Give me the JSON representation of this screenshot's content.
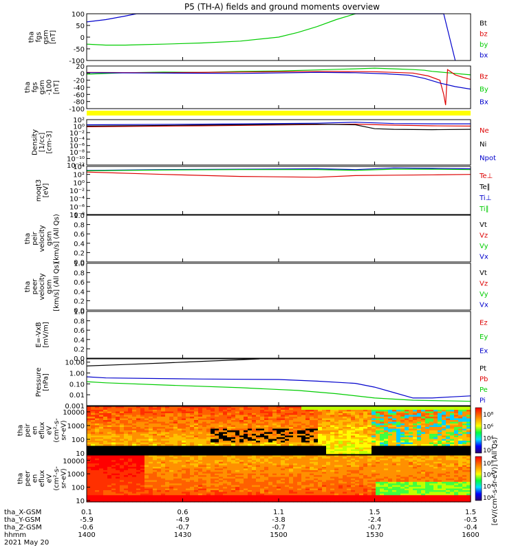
{
  "title": "P5 (TH-A) fields and ground moments overview",
  "colors": {
    "black": "#000000",
    "red": "#dd0000",
    "green": "#00cc00",
    "blue": "#0000cc",
    "yellow": "#ffff00"
  },
  "chart_data": [
    {
      "type": "line",
      "panel": "fgs",
      "ylabel_lines": [
        "tha",
        "fgs",
        "gsm",
        "[nT]"
      ],
      "ylim": [
        -100,
        100
      ],
      "ticks": [
        "100",
        "50",
        "0",
        "-50",
        "-100"
      ],
      "tick_values": [
        100,
        50,
        0,
        -50,
        -100
      ],
      "legend": [
        {
          "label": "Bt",
          "color": "#000000"
        },
        {
          "label": "bz",
          "color": "#dd0000"
        },
        {
          "label": "by",
          "color": "#00cc00"
        },
        {
          "label": "bx",
          "color": "#0000cc"
        }
      ],
      "series": [
        {
          "name": "by",
          "color": "#00cc00",
          "x": [
            0,
            0.05,
            0.1,
            0.15,
            0.2,
            0.3,
            0.4,
            0.5,
            0.55,
            0.6,
            0.65,
            0.7
          ],
          "values": [
            -30,
            -34,
            -34,
            -32,
            -30,
            -25,
            -17,
            0,
            20,
            45,
            75,
            100
          ]
        },
        {
          "name": "bx",
          "color": "#0000cc",
          "x": [
            0,
            0.05,
            0.1,
            0.13,
            0.93,
            0.96
          ],
          "values": [
            65,
            75,
            90,
            100,
            100,
            -100
          ]
        }
      ]
    },
    {
      "type": "line",
      "panel": "fgs-zoom",
      "ylabel_lines": [
        "tha",
        "fgs",
        "gsm",
        "-100",
        "[nT]"
      ],
      "ylim": [
        -100,
        20
      ],
      "ticks": [
        "20",
        "0",
        "-20",
        "-40",
        "-60",
        "-80",
        "-100"
      ],
      "tick_values": [
        20,
        0,
        -20,
        -40,
        -60,
        -80,
        -100
      ],
      "legend": [
        {
          "label": "Bz",
          "color": "#dd0000"
        },
        {
          "label": "By",
          "color": "#00cc00"
        },
        {
          "label": "Bx",
          "color": "#0000cc"
        }
      ],
      "series": [
        {
          "name": "By",
          "color": "#00cc00",
          "x": [
            0,
            0.1,
            0.2,
            0.3,
            0.4,
            0.5,
            0.6,
            0.7,
            0.75,
            0.8,
            0.85,
            0.88,
            0.9,
            0.95,
            1.0
          ],
          "values": [
            -3,
            1,
            3,
            2,
            5,
            6,
            9,
            12,
            14,
            12,
            10,
            8,
            5,
            0,
            -5
          ]
        },
        {
          "name": "Bz",
          "color": "#dd0000",
          "x": [
            0,
            0.2,
            0.4,
            0.6,
            0.75,
            0.85,
            0.89,
            0.92,
            0.93,
            0.935,
            0.94,
            0.96,
            0.98,
            1.0
          ],
          "values": [
            2,
            1,
            3,
            5,
            4,
            0,
            -8,
            -20,
            -60,
            -90,
            10,
            -5,
            -12,
            -18
          ]
        },
        {
          "name": "Bx",
          "color": "#0000cc",
          "x": [
            0,
            0.2,
            0.4,
            0.6,
            0.7,
            0.78,
            0.84,
            0.88,
            0.92,
            0.96,
            1.0
          ],
          "values": [
            1,
            0,
            -1,
            2,
            1,
            -2,
            -6,
            -15,
            -28,
            -38,
            -45
          ]
        }
      ]
    },
    {
      "type": "line",
      "panel": "density",
      "ylabel_lines": [
        "Density",
        "[1/cc]",
        "[cm-3]"
      ],
      "ylim_log": [
        -12,
        2
      ],
      "ticks": [
        "10²",
        "10⁰",
        "10⁻²",
        "10⁻⁴",
        "10⁻⁶",
        "10⁻⁸",
        "10⁻¹⁰",
        "10⁻¹²"
      ],
      "tick_values": [
        2,
        0,
        -2,
        -4,
        -6,
        -8,
        -10,
        -12
      ],
      "legend": [
        {
          "label": "Ne",
          "color": "#dd0000"
        },
        {
          "label": "Ni",
          "color": "#000000"
        },
        {
          "label": "Npot",
          "color": "#0000cc"
        }
      ],
      "series": [
        {
          "name": "Npot",
          "color": "#0000cc",
          "x": [
            0,
            0.3,
            0.6,
            0.7,
            0.75,
            0.8,
            0.9,
            1.0
          ],
          "values": [
            0.4,
            0.6,
            0.9,
            1.2,
            1.0,
            0.8,
            0.7,
            0.7
          ]
        },
        {
          "name": "Ne",
          "color": "#dd0000",
          "x": [
            0,
            0.3,
            0.6,
            0.7,
            0.8,
            0.9,
            1.0
          ],
          "values": [
            -0.2,
            0.1,
            0.5,
            0.6,
            0.3,
            0.1,
            0.0
          ]
        },
        {
          "name": "Ni",
          "color": "#000000",
          "x": [
            0,
            0.3,
            0.6,
            0.7,
            0.75,
            0.8,
            0.9,
            1.0
          ],
          "values": [
            0.0,
            0.3,
            0.6,
            0.4,
            -0.8,
            -1.0,
            -1.1,
            -1.0
          ]
        }
      ]
    },
    {
      "type": "line",
      "panel": "temperature",
      "ylabel_lines": [
        "moqt3",
        "[eV]"
      ],
      "ylim_log": [
        -8,
        4
      ],
      "ticks": [
        "10⁴",
        "10²",
        "10⁰",
        "10⁻²",
        "10⁻⁴",
        "10⁻⁶",
        "10⁻⁸"
      ],
      "tick_values": [
        4,
        2,
        0,
        -2,
        -4,
        -6,
        -8
      ],
      "legend": [
        {
          "label": "Te⊥",
          "color": "#dd0000"
        },
        {
          "label": "Te∥",
          "color": "#000000"
        },
        {
          "label": "Ti⊥",
          "color": "#0000cc"
        },
        {
          "label": "Ti∥",
          "color": "#00cc00"
        }
      ],
      "series": [
        {
          "name": "Ti⊥",
          "color": "#0000cc",
          "x": [
            0,
            0.2,
            0.4,
            0.6,
            0.7,
            0.8,
            0.9,
            1.0
          ],
          "values": [
            3.0,
            3.2,
            3.3,
            3.4,
            3.2,
            3.6,
            3.5,
            3.4
          ]
        },
        {
          "name": "Ti∥",
          "color": "#00cc00",
          "x": [
            0,
            0.2,
            0.4,
            0.6,
            0.7,
            0.8,
            0.9,
            1.0
          ],
          "values": [
            2.9,
            3.1,
            3.2,
            3.2,
            3.0,
            3.3,
            3.3,
            3.2
          ]
        },
        {
          "name": "Te⊥",
          "color": "#dd0000",
          "x": [
            0,
            0.2,
            0.4,
            0.6,
            0.7,
            0.8,
            0.9,
            1.0
          ],
          "values": [
            2.6,
            2.0,
            1.5,
            1.3,
            1.7,
            1.8,
            1.9,
            2.0
          ]
        }
      ]
    },
    {
      "type": "line",
      "panel": "peir-velocity",
      "ylabel_lines": [
        "tha",
        "peir",
        "velocity",
        "gsm",
        "[km/s] (All Qs)"
      ],
      "ylim": [
        0,
        1
      ],
      "ticks": [
        "1.0",
        "0.8",
        "0.6",
        "0.4",
        "0.2",
        "0.0"
      ],
      "tick_values": [
        1,
        0.8,
        0.6,
        0.4,
        0.2,
        0
      ],
      "legend": [
        {
          "label": "Vt",
          "color": "#000000"
        },
        {
          "label": "Vz",
          "color": "#dd0000"
        },
        {
          "label": "Vy",
          "color": "#00cc00"
        },
        {
          "label": "Vx",
          "color": "#0000cc"
        }
      ],
      "series": []
    },
    {
      "type": "line",
      "panel": "peer-velocity",
      "ylabel_lines": [
        "tha",
        "peer",
        "velocity",
        "gsm",
        "[km/s] (All Qs)"
      ],
      "ylim": [
        0,
        1
      ],
      "ticks": [
        "1.0",
        "0.8",
        "0.6",
        "0.4",
        "0.2",
        "0.0"
      ],
      "tick_values": [
        1,
        0.8,
        0.6,
        0.4,
        0.2,
        0
      ],
      "legend": [
        {
          "label": "Vt",
          "color": "#000000"
        },
        {
          "label": "Vz",
          "color": "#dd0000"
        },
        {
          "label": "Vy",
          "color": "#00cc00"
        },
        {
          "label": "Vx",
          "color": "#0000cc"
        }
      ],
      "series": []
    },
    {
      "type": "line",
      "panel": "efield",
      "ylabel_lines": [
        "E=-VxB",
        "[mV/m]"
      ],
      "ylim": [
        0,
        1
      ],
      "ticks": [
        "1.0",
        "0.8",
        "0.6",
        "0.4",
        "0.2",
        "0.0"
      ],
      "tick_values": [
        1,
        0.8,
        0.6,
        0.4,
        0.2,
        0
      ],
      "legend": [
        {
          "label": "Ez",
          "color": "#dd0000"
        },
        {
          "label": "Ey",
          "color": "#00cc00"
        },
        {
          "label": "Ex",
          "color": "#0000cc"
        }
      ],
      "series": []
    },
    {
      "type": "line",
      "panel": "pressure",
      "ylabel_lines": [
        "Pressure",
        "[nPa]"
      ],
      "ylim_log": [
        -3,
        1.3
      ],
      "ticks": [
        "10.00",
        "1.00",
        "0.10",
        "0.01",
        "0.001"
      ],
      "tick_values": [
        1,
        0,
        -1,
        -2,
        -3
      ],
      "legend": [
        {
          "label": "Pt",
          "color": "#000000"
        },
        {
          "label": "Pb",
          "color": "#dd0000"
        },
        {
          "label": "Pe",
          "color": "#00cc00"
        },
        {
          "label": "Pi",
          "color": "#0000cc"
        }
      ],
      "series": [
        {
          "name": "Pt",
          "color": "#000000",
          "x": [
            0,
            0.1,
            0.2,
            0.3,
            0.4,
            0.45
          ],
          "values": [
            0.65,
            0.78,
            0.92,
            1.07,
            1.22,
            1.3
          ]
        },
        {
          "name": "Pi",
          "color": "#0000cc",
          "x": [
            0,
            0.05,
            0.3,
            0.5,
            0.6,
            0.7,
            0.75,
            0.8,
            0.85,
            0.9,
            0.95,
            1.0
          ],
          "values": [
            -0.35,
            -0.45,
            -0.55,
            -0.6,
            -0.75,
            -0.95,
            -1.3,
            -1.8,
            -2.3,
            -2.3,
            -2.2,
            -2.1
          ]
        },
        {
          "name": "Pe",
          "color": "#00cc00",
          "x": [
            0,
            0.05,
            0.2,
            0.4,
            0.55,
            0.65,
            0.75,
            0.85,
            1.0
          ],
          "values": [
            -0.8,
            -0.9,
            -1.1,
            -1.35,
            -1.6,
            -1.9,
            -2.3,
            -2.5,
            -2.6
          ]
        }
      ]
    },
    {
      "type": "heatmap",
      "panel": "peir-eflux",
      "ylabel_lines": [
        "tha",
        "peir",
        "en",
        "eflux",
        "eV",
        "(cm²-s-",
        "sr-eV)"
      ],
      "ticks": [
        "10000",
        "1000",
        "100",
        "10"
      ],
      "tick_values": [
        4,
        3,
        2,
        1
      ],
      "ylim_log": [
        0.9,
        4.4
      ]
    },
    {
      "type": "heatmap",
      "panel": "peer-eflux",
      "ylabel_lines": [
        "tha",
        "peer",
        "en",
        "eflux",
        "eV",
        "(cm²-s-",
        "sr-eV)"
      ],
      "ticks": [
        "10000",
        "1000",
        "100",
        "10"
      ],
      "tick_values": [
        4,
        3,
        2,
        1
      ],
      "ylim_log": [
        0.9,
        4.4
      ]
    }
  ],
  "colorbars": [
    {
      "ticks": [
        "10⁸",
        "10⁶",
        "10⁴",
        "10²"
      ]
    },
    {
      "ticks": [
        "10⁸",
        "10⁶",
        "10⁴",
        "10²"
      ]
    }
  ],
  "colorbar_label": "[eV/(cm²-s-sr-eV)] (All Qs)",
  "x_axis": {
    "row_labels": [
      "tha_X-GSM",
      "tha_Y-GSM",
      "tha_Z-GSM",
      "hhmm",
      "2021 May 20"
    ],
    "ticks": [
      {
        "x": 0.0,
        "values": [
          "0.1",
          "-5.9",
          "-0.6",
          "1400"
        ]
      },
      {
        "x": 0.25,
        "values": [
          "0.6",
          "-4.9",
          "-0.7",
          "1430"
        ]
      },
      {
        "x": 0.5,
        "values": [
          "1.1",
          "-3.8",
          "-0.7",
          "1500"
        ]
      },
      {
        "x": 0.75,
        "values": [
          "1.5",
          "-2.4",
          "-0.7",
          "1530"
        ]
      },
      {
        "x": 1.0,
        "values": [
          "1.5",
          "-0.5",
          "-0.4",
          "1600"
        ]
      }
    ]
  }
}
